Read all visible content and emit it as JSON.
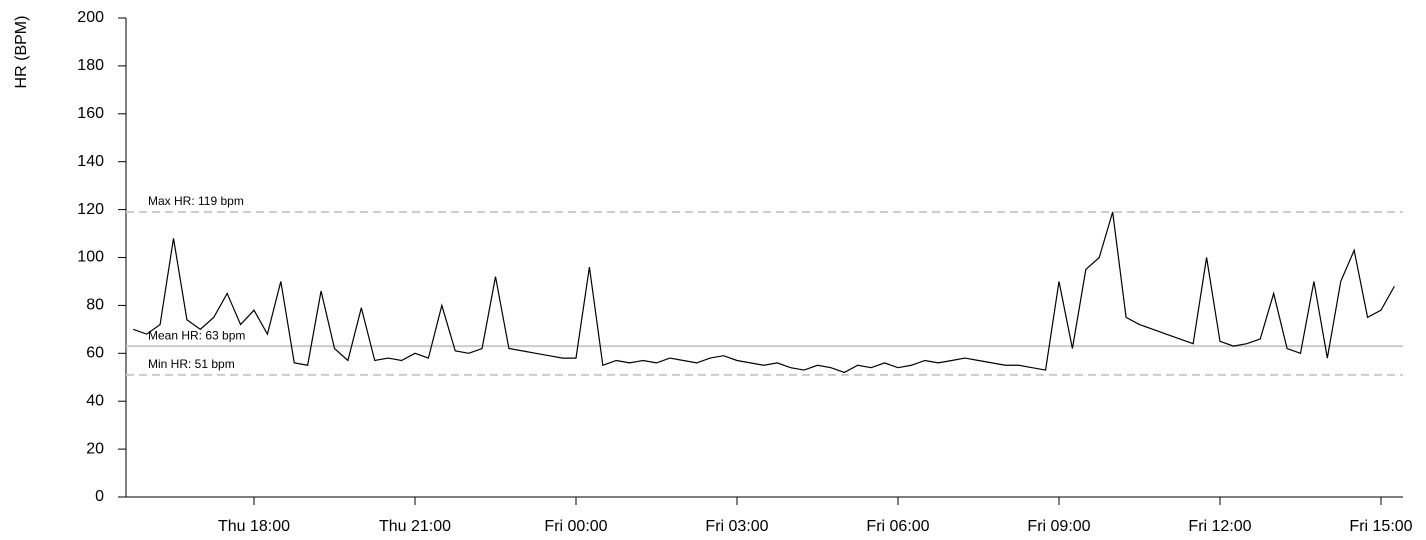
{
  "chart_data": {
    "type": "line",
    "y_label": "HR (BPM)",
    "x": [
      15.75,
      16,
      16.25,
      16.5,
      16.75,
      17,
      17.25,
      17.5,
      17.75,
      18,
      18.25,
      18.5,
      18.75,
      19,
      19.25,
      19.5,
      19.75,
      20,
      20.25,
      20.5,
      20.75,
      21,
      21.25,
      21.5,
      21.75,
      22,
      22.25,
      22.5,
      22.75,
      23,
      23.25,
      23.5,
      23.75,
      24,
      24.25,
      24.5,
      24.75,
      25,
      25.25,
      25.5,
      25.75,
      26,
      26.25,
      26.5,
      26.75,
      27,
      27.25,
      27.5,
      27.75,
      28,
      28.25,
      28.5,
      28.75,
      29,
      29.25,
      29.5,
      29.75,
      30,
      30.25,
      30.5,
      30.75,
      31,
      31.25,
      31.5,
      31.75,
      32,
      32.25,
      32.5,
      32.75,
      33,
      33.25,
      33.5,
      33.75,
      34,
      34.25,
      34.5,
      34.75,
      35,
      35.25,
      35.5,
      35.75,
      36,
      36.25,
      36.5,
      36.75,
      37,
      37.25,
      37.5,
      37.75,
      38,
      38.25,
      38.5,
      38.75,
      39,
      39.25
    ],
    "series": [
      {
        "color": "#000000",
        "values": [
          70,
          68,
          72,
          108,
          74,
          70,
          75,
          85,
          72,
          78,
          68,
          90,
          56,
          55,
          86,
          62,
          57,
          79,
          57,
          58,
          57,
          60,
          58,
          80,
          61,
          60,
          62,
          92,
          62,
          61,
          60,
          59,
          58,
          58,
          96,
          55,
          57,
          56,
          57,
          56,
          58,
          57,
          56,
          58,
          59,
          57,
          56,
          55,
          56,
          54,
          53,
          55,
          54,
          52,
          55,
          54,
          56,
          54,
          55,
          57,
          56,
          57,
          58,
          57,
          56,
          55,
          55,
          54,
          53,
          90,
          62,
          95,
          100,
          119,
          75,
          72,
          70,
          68,
          66,
          64,
          100,
          65,
          63,
          64,
          66,
          85,
          62,
          60,
          90,
          58,
          90,
          103,
          75,
          78,
          88
        ]
      }
    ],
    "reference_lines": [
      {
        "label": "Max HR: 119 bpm",
        "value": 119,
        "style": "dashed"
      },
      {
        "label": "Mean HR: 63 bpm",
        "value": 63,
        "style": "solid"
      },
      {
        "label": "Min HR: 51 bpm",
        "value": 51,
        "style": "dashed"
      }
    ],
    "ref_color": "#cccccc",
    "xlim": [
      15.615,
      39.41
    ],
    "xticks": [
      {
        "value": 18,
        "label": "Thu 18:00"
      },
      {
        "value": 21,
        "label": "Thu 21:00"
      },
      {
        "value": 24,
        "label": "Fri 00:00"
      },
      {
        "value": 27,
        "label": "Fri 03:00"
      },
      {
        "value": 30,
        "label": "Fri 06:00"
      },
      {
        "value": 33,
        "label": "Fri 09:00"
      },
      {
        "value": 36,
        "label": "Fri 12:00"
      },
      {
        "value": 39,
        "label": "Fri 15:00"
      }
    ],
    "ylim": [
      0,
      200
    ],
    "yticks": [
      0,
      20,
      40,
      60,
      80,
      100,
      120,
      140,
      160,
      180,
      200
    ]
  }
}
